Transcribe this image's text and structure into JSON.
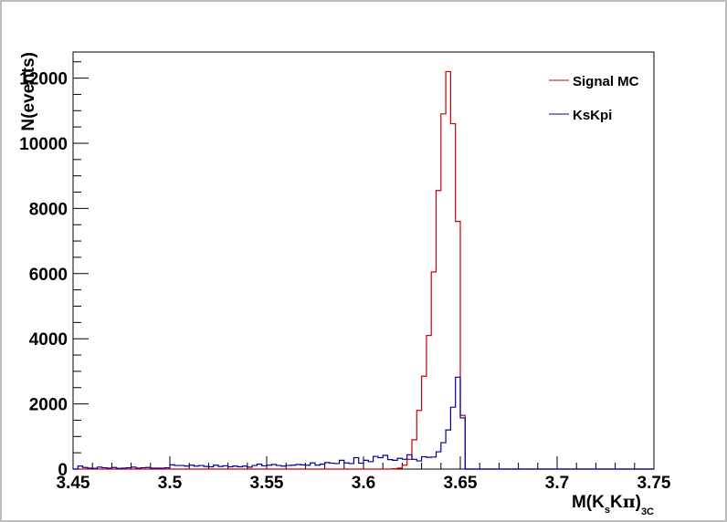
{
  "chart_data": {
    "type": "line",
    "title": "",
    "xlabel": {
      "prefix": "M(K",
      "sub1": "s",
      "mid": "K",
      "pi": "π",
      "close": ")",
      "sub2": "3C"
    },
    "ylabel": "N(events)",
    "xlim": [
      3.45,
      3.75
    ],
    "ylim": [
      0,
      12800
    ],
    "xticks": [
      3.45,
      3.5,
      3.55,
      3.6,
      3.65,
      3.7,
      3.75
    ],
    "xtick_labels": [
      "3.45",
      "3.5",
      "3.55",
      "3.6",
      "3.65",
      "3.7",
      "3.75"
    ],
    "yticks": [
      0,
      2000,
      4000,
      6000,
      8000,
      10000,
      12000
    ],
    "ytick_labels": [
      "0",
      "2000",
      "4000",
      "6000",
      "8000",
      "10000",
      "12000"
    ],
    "grid": false,
    "legend_position": "top-right",
    "bin_edges": {
      "start": 3.45,
      "width": 0.0025,
      "count": 120
    },
    "series": [
      {
        "name": "Signal MC",
        "color": "#cc0000",
        "values": [
          0,
          0,
          0,
          0,
          0,
          0,
          0,
          0,
          0,
          0,
          0,
          0,
          0,
          0,
          0,
          0,
          0,
          0,
          0,
          0,
          0,
          0,
          0,
          0,
          0,
          0,
          0,
          0,
          0,
          0,
          0,
          0,
          0,
          0,
          0,
          0,
          0,
          0,
          0,
          0,
          0,
          0,
          0,
          0,
          0,
          0,
          0,
          0,
          0,
          0,
          0,
          0,
          0,
          0,
          0,
          0,
          0,
          0,
          0,
          0,
          0,
          0,
          0,
          0,
          0,
          0,
          10,
          30,
          120,
          300,
          900,
          1800,
          2850,
          4100,
          6050,
          8550,
          10900,
          12200,
          10600,
          7600,
          1650,
          0,
          0,
          0,
          0,
          0,
          0,
          0,
          0,
          0,
          0,
          0,
          0,
          0,
          0,
          0,
          0,
          0,
          0,
          0,
          0,
          0,
          0,
          0,
          0,
          0,
          0,
          0,
          0,
          0,
          0,
          0,
          0,
          0,
          0,
          0,
          0,
          0,
          0,
          0
        ]
      },
      {
        "name": "KsKpi",
        "color": "#000099",
        "values": [
          0,
          90,
          50,
          30,
          20,
          60,
          40,
          30,
          50,
          20,
          30,
          40,
          60,
          30,
          40,
          50,
          30,
          30,
          30,
          40,
          130,
          110,
          110,
          90,
          120,
          90,
          110,
          80,
          70,
          120,
          80,
          100,
          70,
          90,
          70,
          90,
          60,
          110,
          150,
          100,
          120,
          140,
          110,
          90,
          110,
          120,
          140,
          130,
          120,
          190,
          120,
          150,
          200,
          180,
          170,
          270,
          190,
          170,
          350,
          180,
          270,
          230,
          390,
          350,
          420,
          290,
          270,
          330,
          300,
          440,
          300,
          250,
          380,
          360,
          370,
          530,
          810,
          1200,
          1900,
          2820,
          1570,
          0,
          0,
          0,
          0,
          0,
          0,
          0,
          0,
          0,
          0,
          0,
          0,
          0,
          0,
          0,
          0,
          0,
          0,
          0,
          0,
          0,
          0,
          0,
          0,
          0,
          0,
          0,
          0,
          0,
          0,
          0,
          0,
          0,
          0,
          0,
          0,
          0,
          0,
          0
        ]
      }
    ]
  }
}
